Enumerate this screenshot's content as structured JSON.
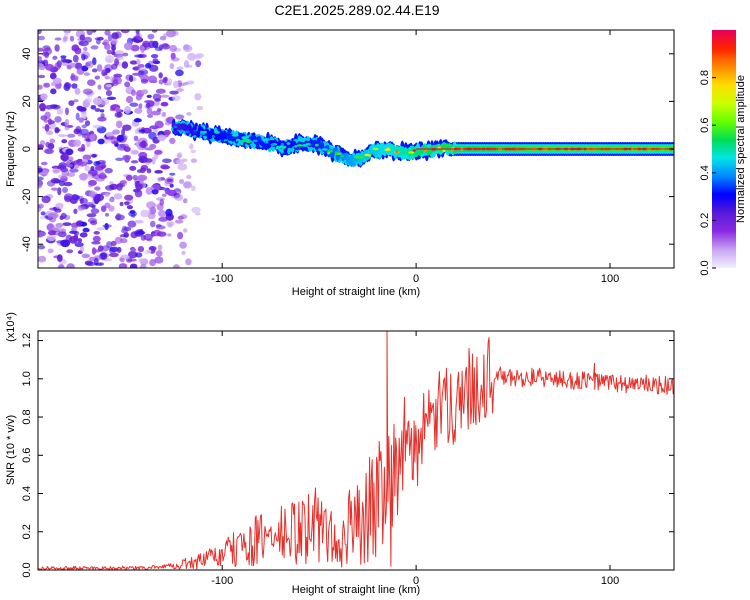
{
  "figure": {
    "title": "C2E1.2025.289.02.44.E19"
  },
  "chart_data": [
    {
      "type": "heatmap",
      "name": "spectrogram",
      "title": "C2E1.2025.289.02.44.E19",
      "xlabel": "Height of straight line (km)",
      "ylabel": "Frequency (Hz)",
      "xlim": [
        -195,
        133
      ],
      "ylim": [
        -50,
        50
      ],
      "x_ticks": [
        -100,
        0,
        100
      ],
      "y_ticks": [
        -40,
        -20,
        0,
        20,
        40
      ],
      "colorbar": {
        "label": "Normalized spectral amplitude",
        "range": [
          0,
          1
        ],
        "ticks": [
          0.0,
          0.2,
          0.4,
          0.6,
          0.8
        ],
        "colors": [
          "#f0f0ff",
          "#c9a4f2",
          "#8a2be2",
          "#5a1ad8",
          "#0000ff",
          "#0088ff",
          "#00e5e5",
          "#00dd55",
          "#66ff00",
          "#ccff00",
          "#ffdd00",
          "#ff8800",
          "#ff2200",
          "#e8005c"
        ]
      },
      "ridge": {
        "x": [
          -125,
          -110,
          -95,
          -80,
          -70,
          -60,
          -50,
          -45,
          -38,
          -33,
          -28,
          -22,
          -15,
          -8,
          0,
          10,
          30,
          60,
          90,
          133
        ],
        "freq": [
          9,
          7,
          5,
          3,
          1,
          2,
          2,
          -1,
          -3,
          -5,
          -4,
          -1,
          0,
          -1,
          -1,
          0,
          0,
          0,
          0,
          0
        ],
        "amplitude": [
          0.35,
          0.45,
          0.5,
          0.5,
          0.45,
          0.5,
          0.5,
          0.55,
          0.6,
          0.65,
          0.7,
          0.7,
          0.75,
          0.8,
          0.85,
          0.9,
          0.9,
          0.95,
          0.95,
          0.95
        ]
      },
      "noise_region_x": [
        -195,
        -110
      ]
    },
    {
      "type": "line",
      "name": "snr",
      "xlabel": "Height of straight line (km)",
      "ylabel": "SNR (10 * v/v)",
      "y_scale_label": "(x10⁴)",
      "xlim": [
        -195,
        133
      ],
      "ylim": [
        0,
        1.25
      ],
      "x_ticks": [
        -100,
        0,
        100
      ],
      "y_ticks": [
        0.0,
        0.2,
        0.4,
        0.6,
        0.8,
        1.0,
        1.2
      ],
      "color": "#e8302a",
      "series": [
        {
          "name": "SNR",
          "x": [
            -195,
            -180,
            -160,
            -140,
            -130,
            -120,
            -110,
            -100,
            -90,
            -80,
            -70,
            -60,
            -55,
            -50,
            -45,
            -40,
            -35,
            -30,
            -25,
            -20,
            -15,
            -10,
            -5,
            0,
            5,
            10,
            15,
            20,
            25,
            30,
            40,
            50,
            60,
            70,
            80,
            90,
            100,
            110,
            120,
            133
          ],
          "y": [
            0.01,
            0.01,
            0.01,
            0.01,
            0.02,
            0.03,
            0.05,
            0.08,
            0.12,
            0.16,
            0.18,
            0.2,
            0.22,
            0.25,
            0.2,
            0.08,
            0.22,
            0.25,
            0.3,
            0.4,
            0.5,
            0.55,
            0.6,
            0.65,
            0.72,
            0.8,
            0.85,
            0.88,
            0.92,
            0.97,
            1.02,
            1.0,
            1.01,
            1.0,
            0.99,
            0.99,
            0.98,
            0.97,
            0.97,
            0.96
          ]
        }
      ],
      "spikes": [
        {
          "x": -15,
          "y": 1.25
        },
        {
          "x": -13,
          "y": 0.02
        },
        {
          "x": 92,
          "y": 1.08
        }
      ]
    }
  ]
}
